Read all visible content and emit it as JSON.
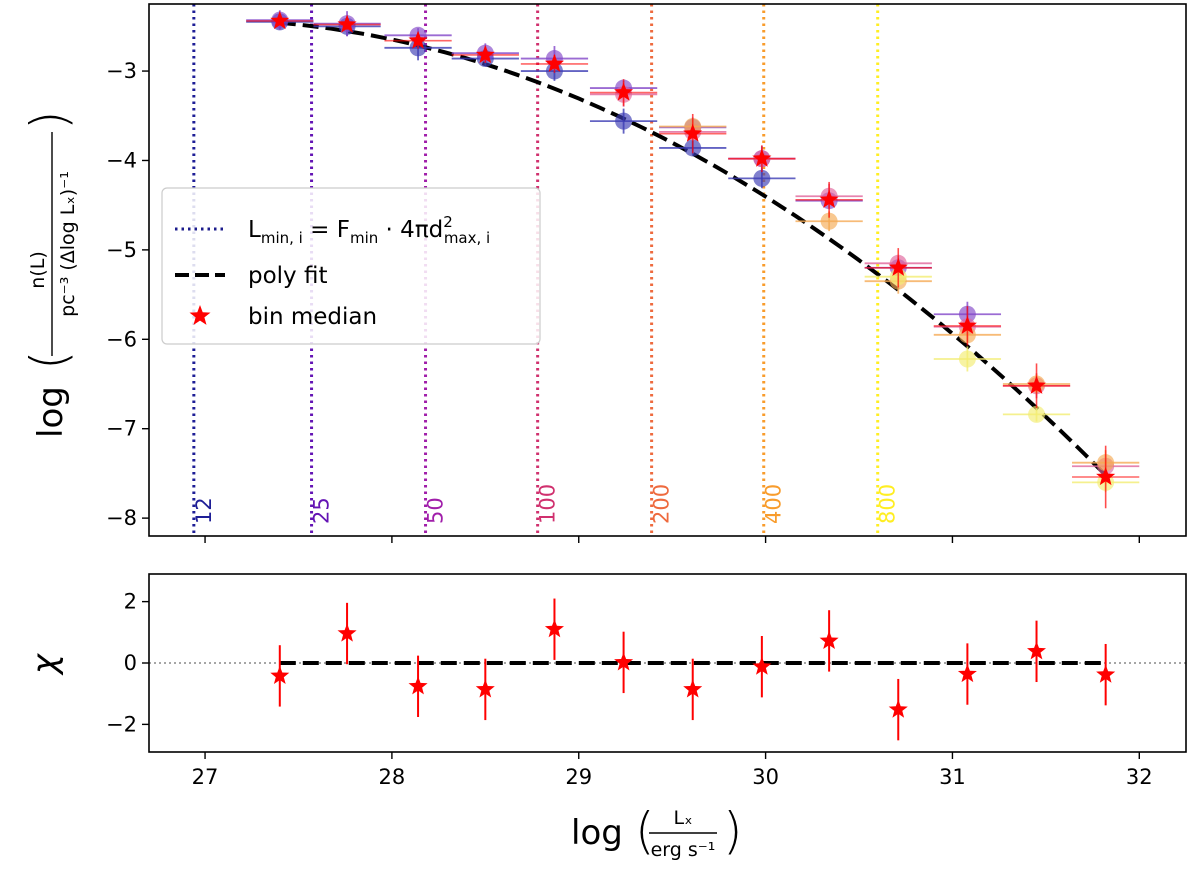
{
  "chart_data": [
    {
      "type": "scatter",
      "name": "luminosity function",
      "xlim": [
        26.7,
        32.25
      ],
      "ylim": [
        -8.2,
        -2.25
      ],
      "xticks": [
        27,
        28,
        29,
        30,
        31,
        32
      ],
      "yticks": [
        -3,
        -4,
        -5,
        -6,
        -7,
        -8
      ],
      "ytick_labels": [
        "−3",
        "−4",
        "−5",
        "−6",
        "−7",
        "−8"
      ],
      "ylabel": {
        "prefix": "log",
        "numerator": "n(L)",
        "denominator": "pc⁻³ (Δlog Lₓ)⁻¹"
      },
      "legend": {
        "location": "center-left",
        "entries": [
          {
            "key": "lmin",
            "label": "L_min,i = F_min · 4πd²_max,i",
            "text_main": "L",
            "text_sub1": "min, i",
            "text_mid": " = F",
            "text_sub2": "min",
            "text_mid2": " · 4πd",
            "text_sup": "2",
            "text_sub3": "max, i",
            "style": "dotted",
            "color": "#1c1c8c"
          },
          {
            "key": "fit",
            "label": "poly fit",
            "style": "dashed",
            "color": "#000000"
          },
          {
            "key": "median",
            "label": "bin median",
            "style": "star",
            "color": "#ff0000"
          }
        ]
      },
      "distance_limits": [
        {
          "label": "12",
          "x": 26.94,
          "color": "#1e1e96"
        },
        {
          "label": "25",
          "x": 27.57,
          "color": "#6414b4"
        },
        {
          "label": "50",
          "x": 28.18,
          "color": "#a01eaa"
        },
        {
          "label": "100",
          "x": 28.78,
          "color": "#d0306e"
        },
        {
          "label": "200",
          "x": 29.39,
          "color": "#ee6a3e"
        },
        {
          "label": "400",
          "x": 29.99,
          "color": "#f89c2c"
        },
        {
          "label": "800",
          "x": 30.6,
          "color": "#ffee22"
        }
      ],
      "poly_fit": {
        "x_range": [
          27.4,
          31.82
        ],
        "coeffs": [
          -2.46,
          -0.181,
          -0.218
        ]
      },
      "bin_median": {
        "x": [
          27.4,
          27.76,
          28.14,
          28.5,
          28.87,
          29.24,
          29.61,
          29.98,
          30.34,
          30.71,
          31.08,
          31.45,
          31.82
        ],
        "y": [
          -2.44,
          -2.48,
          -2.66,
          -2.82,
          -2.92,
          -3.24,
          -3.7,
          -3.98,
          -4.44,
          -5.2,
          -5.85,
          -6.52,
          -7.54
        ],
        "yerr": [
          0.05,
          0.06,
          0.09,
          0.09,
          0.1,
          0.15,
          0.22,
          0.15,
          0.2,
          0.22,
          0.22,
          0.25,
          0.35
        ]
      },
      "samples": [
        {
          "color": "#3c3cb4",
          "points": [
            [
              27.4,
              -2.45
            ],
            [
              27.76,
              -2.5
            ],
            [
              28.14,
              -2.74
            ],
            [
              28.5,
              -2.86
            ],
            [
              28.87,
              -3.0
            ],
            [
              29.24,
              -3.56
            ],
            [
              29.61,
              -3.86
            ],
            [
              29.98,
              -4.2
            ]
          ]
        },
        {
          "color": "#8246c8",
          "points": [
            [
              27.4,
              -2.43
            ],
            [
              27.76,
              -2.47
            ],
            [
              28.14,
              -2.6
            ],
            [
              28.5,
              -2.8
            ],
            [
              28.87,
              -2.86
            ],
            [
              29.24,
              -3.19
            ],
            [
              29.61,
              -3.63
            ],
            [
              29.98,
              -3.98
            ],
            [
              30.34,
              -4.45
            ],
            [
              30.71,
              -5.2
            ],
            [
              31.08,
              -5.72
            ]
          ]
        },
        {
          "color": "#e0649b",
          "points": [
            [
              29.24,
              -3.26
            ],
            [
              29.61,
              -3.68
            ],
            [
              29.98,
              -3.98
            ],
            [
              30.34,
              -4.4
            ],
            [
              30.71,
              -5.15
            ],
            [
              31.08,
              -5.86
            ],
            [
              31.45,
              -6.52
            ],
            [
              31.82,
              -7.42
            ]
          ]
        },
        {
          "color": "#f5aa55",
          "points": [
            [
              29.61,
              -3.62
            ],
            [
              30.34,
              -4.68
            ],
            [
              30.71,
              -5.35
            ],
            [
              31.08,
              -5.95
            ],
            [
              31.45,
              -6.5
            ],
            [
              31.82,
              -7.38
            ]
          ]
        },
        {
          "color": "#f2ec72",
          "points": [
            [
              30.71,
              -5.3
            ],
            [
              31.08,
              -6.22
            ],
            [
              31.45,
              -6.84
            ],
            [
              31.82,
              -7.6
            ]
          ]
        }
      ]
    },
    {
      "type": "scatter",
      "name": "residuals",
      "xlim": [
        26.7,
        32.25
      ],
      "ylim": [
        -2.9,
        2.9
      ],
      "yticks": [
        2,
        0,
        -2
      ],
      "ytick_labels": [
        "2",
        "0",
        "−2"
      ],
      "xtick_labels": [
        "27",
        "28",
        "29",
        "30",
        "31",
        "32"
      ],
      "ylabel": "χ",
      "xlabel": {
        "prefix": "log",
        "numerator": "Lₓ",
        "denominator": "erg s⁻¹"
      },
      "zero_line": true,
      "x": [
        27.4,
        27.76,
        28.14,
        28.5,
        28.87,
        29.24,
        29.61,
        29.98,
        30.34,
        30.71,
        31.08,
        31.45,
        31.82
      ],
      "chi": [
        -0.42,
        0.96,
        -0.76,
        -0.86,
        1.1,
        0.02,
        -0.86,
        -0.12,
        0.72,
        -1.52,
        -0.36,
        0.38,
        -0.38
      ],
      "chi_err": [
        1.0,
        1.0,
        1.0,
        1.0,
        1.0,
        1.0,
        1.0,
        1.0,
        1.0,
        1.0,
        1.0,
        1.0,
        1.0
      ]
    }
  ]
}
